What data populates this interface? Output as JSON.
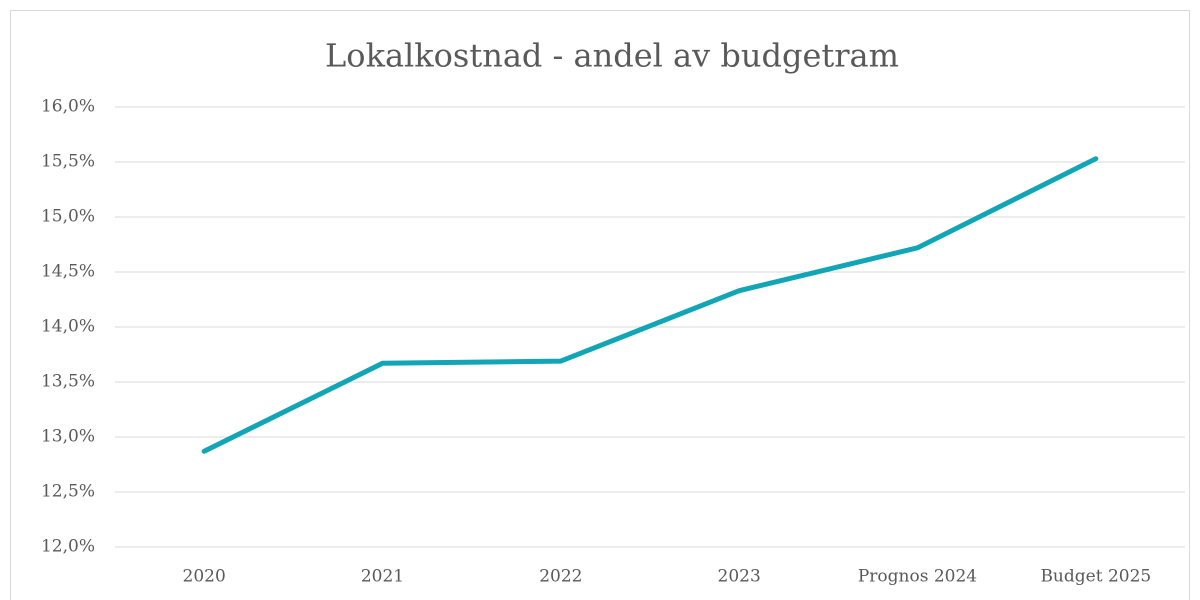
{
  "chart_data": {
    "type": "line",
    "title": "Lokalkostnad - andel av budgetram",
    "categories": [
      "2020",
      "2021",
      "2022",
      "2023",
      "Prognos 2024",
      "Budget 2025"
    ],
    "series": [
      {
        "name": "Lokalkostnad",
        "color": "#11a5b5",
        "values": [
          12.87,
          13.67,
          13.69,
          14.33,
          14.72,
          15.53
        ]
      }
    ],
    "ylim": [
      12,
      16
    ],
    "yticks": [
      {
        "value": 12,
        "label": "12,0%"
      },
      {
        "value": 12.5,
        "label": "12,5%"
      },
      {
        "value": 13,
        "label": "13,0%"
      },
      {
        "value": 13.5,
        "label": "13,5%"
      },
      {
        "value": 14,
        "label": "14,0%"
      },
      {
        "value": 14.5,
        "label": "14,5%"
      },
      {
        "value": 15,
        "label": "15,0%"
      },
      {
        "value": 15.5,
        "label": "15,5%"
      },
      {
        "value": 16,
        "label": "16,0%"
      }
    ],
    "grid": true
  }
}
